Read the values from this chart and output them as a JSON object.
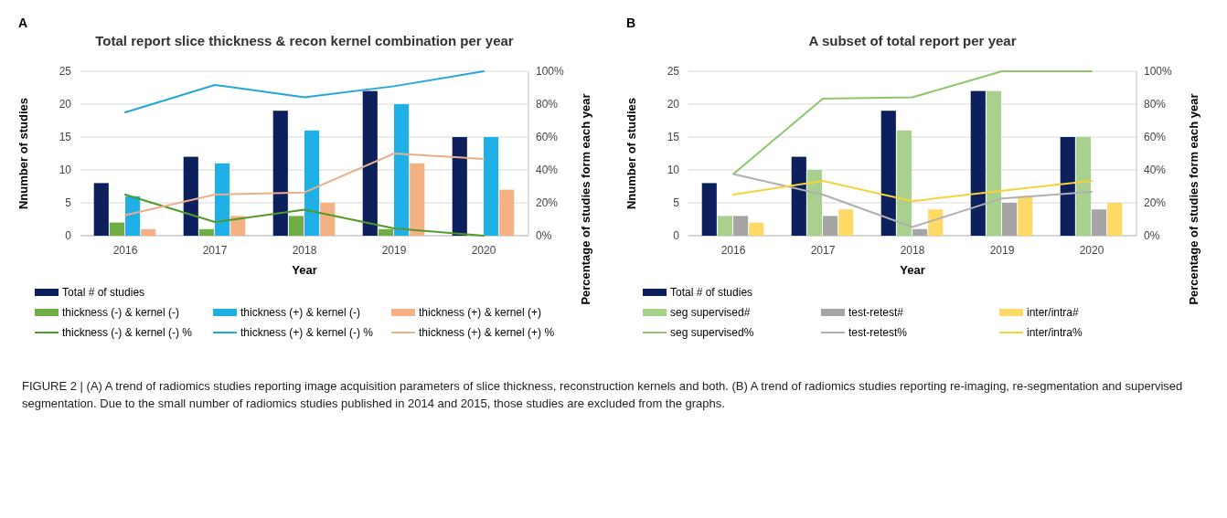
{
  "chart_data": [
    {
      "type": "bar",
      "title": "Total report slice thickness & recon kernel combination per year",
      "xlabel": "Year",
      "ylabel": "Nnumber of studies",
      "y2label": "Percentage of studies form each year",
      "annotations": [
        "A",
        "FIGURE 2 | (A) A trend of radiomics studies reporting image acquisition parameters of slice thickness, reconstruction kernels and both. (B) A trend of radiomics studies reporting re-imaging, re-segmentation and supervised segmentation. Due to the small number of radiomics studies published in 2014 and 2015, those studies are excluded from the graphs."
      ],
      "categories": [
        "2016",
        "2017",
        "2018",
        "2019",
        "2020"
      ],
      "series": [
        {
          "name": "Total # of studies",
          "color": "#0d1f5c",
          "values": [
            8,
            12,
            19,
            22,
            15
          ]
        },
        {
          "name": "thickness (-) & kernel (-)",
          "color": "#70ad47",
          "values": [
            2,
            1,
            3,
            1,
            0
          ]
        },
        {
          "name": "thickness (+) & kernel (-)",
          "color": "#1fb0e8",
          "values": [
            6,
            11,
            16,
            20,
            15
          ]
        },
        {
          "name": "thickness (+) & kernel (+)",
          "color": "#f4b183",
          "values": [
            1,
            3,
            5,
            11,
            7
          ]
        },
        {
          "name": "thickness (-) & kernel (-) %",
          "type": "line",
          "axis": "y2",
          "color": "#4e9a2a",
          "values": [
            25,
            8.3,
            15.8,
            4.5,
            0
          ]
        },
        {
          "name": "thickness (+) & kernel (-) %",
          "type": "line",
          "axis": "y2",
          "color": "#23a7d8",
          "values": [
            75,
            91.7,
            84.2,
            90.9,
            100
          ]
        },
        {
          "name": "thickness (+) & kernel (+) %",
          "type": "line",
          "axis": "y2",
          "color": "#e8b08a",
          "values": [
            12.5,
            25,
            26.3,
            50,
            46.7
          ]
        }
      ],
      "ylim": [
        0,
        25
      ],
      "yticks": [
        0,
        5,
        10,
        15,
        20,
        25
      ],
      "y2lim": [
        0,
        100
      ],
      "y2ticks": [
        {
          "value": 0,
          "label": "0%"
        },
        {
          "value": 20,
          "label": "20%"
        },
        {
          "value": 40,
          "label": "40%"
        },
        {
          "value": 60,
          "label": "60%"
        },
        {
          "value": 80,
          "label": "80%"
        },
        {
          "value": 100,
          "label": "100%"
        }
      ],
      "grid": "y",
      "legend": "bottom"
    },
    {
      "type": "bar",
      "title": "A subset of total report per year",
      "xlabel": "Year",
      "ylabel": "Nnumber of studies",
      "y2label": "Percentage of studies form each year",
      "annotations": [
        "B"
      ],
      "categories": [
        "2016",
        "2017",
        "2018",
        "2019",
        "2020"
      ],
      "series": [
        {
          "name": "Total # of studies",
          "color": "#0d1f5c",
          "values": [
            8,
            12,
            19,
            22,
            15
          ]
        },
        {
          "name": "seg supervised#",
          "color": "#a9d18e",
          "values": [
            3,
            10,
            16,
            22,
            15
          ]
        },
        {
          "name": "test-retest#",
          "color": "#a5a5a5",
          "values": [
            3,
            3,
            1,
            5,
            4
          ]
        },
        {
          "name": "inter/intra#",
          "color": "#ffd966",
          "values": [
            2,
            4,
            4,
            6,
            5
          ]
        },
        {
          "name": "seg supervised%",
          "type": "line",
          "axis": "y2",
          "color": "#8cc56a",
          "values": [
            37.5,
            83.3,
            84.2,
            100,
            100
          ]
        },
        {
          "name": "test-retest%",
          "type": "line",
          "axis": "y2",
          "color": "#b0b0b0",
          "values": [
            37.5,
            25,
            5.3,
            22.7,
            26.7
          ]
        },
        {
          "name": "inter/intra%",
          "type": "line",
          "axis": "y2",
          "color": "#f5d33a",
          "values": [
            25,
            33.3,
            21,
            27.3,
            33.3
          ]
        }
      ],
      "ylim": [
        0,
        25
      ],
      "yticks": [
        0,
        5,
        10,
        15,
        20,
        25
      ],
      "y2lim": [
        0,
        100
      ],
      "y2ticks": [
        {
          "value": 0,
          "label": "0%"
        },
        {
          "value": 20,
          "label": "20%"
        },
        {
          "value": 40,
          "label": "40%"
        },
        {
          "value": 60,
          "label": "60%"
        },
        {
          "value": 80,
          "label": "80%"
        },
        {
          "value": 100,
          "label": "100%"
        }
      ],
      "grid": "y",
      "legend": "bottom"
    }
  ]
}
